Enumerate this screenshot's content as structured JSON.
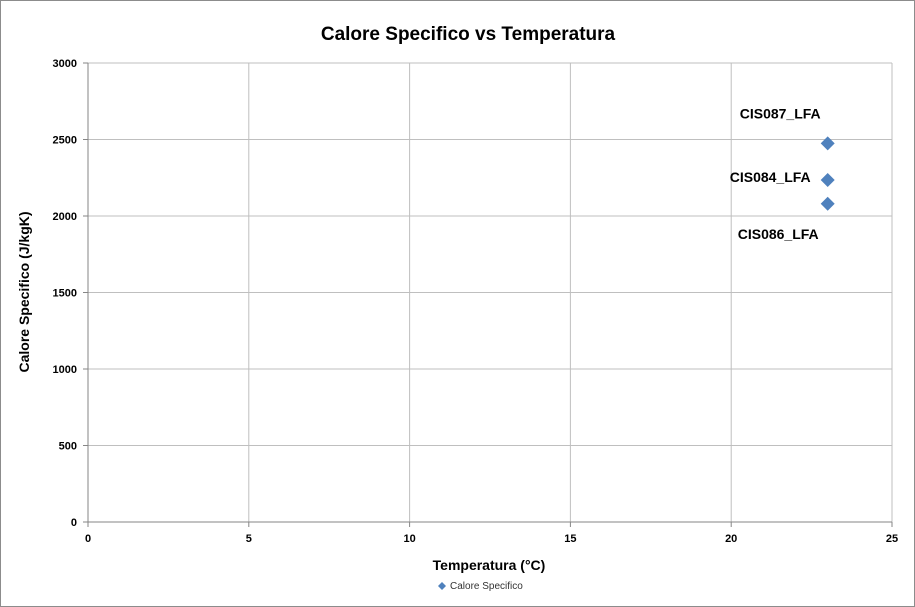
{
  "chart_data": {
    "type": "scatter",
    "title": "Calore Specifico vs Temperatura",
    "xlabel": "Temperatura (°C)",
    "ylabel": "Calore Specifico (J/kgK)",
    "xlim": [
      0,
      25
    ],
    "ylim": [
      0,
      3000
    ],
    "xticks": [
      0,
      5,
      10,
      15,
      20,
      25
    ],
    "yticks": [
      0,
      500,
      1000,
      1500,
      2000,
      2500,
      3000
    ],
    "grid": true,
    "legend_position": "bottom",
    "series": [
      {
        "name": "Calore Specifico",
        "color": "#4f81bd",
        "marker": "diamond",
        "points": [
          {
            "x": 23,
            "y": 2475,
            "label": "CIS087_LFA",
            "label_position": "above-left"
          },
          {
            "x": 23,
            "y": 2235,
            "label": "CIS084_LFA",
            "label_position": "left"
          },
          {
            "x": 23,
            "y": 2080,
            "label": "CIS086_LFA",
            "label_position": "below-left"
          }
        ]
      }
    ]
  }
}
